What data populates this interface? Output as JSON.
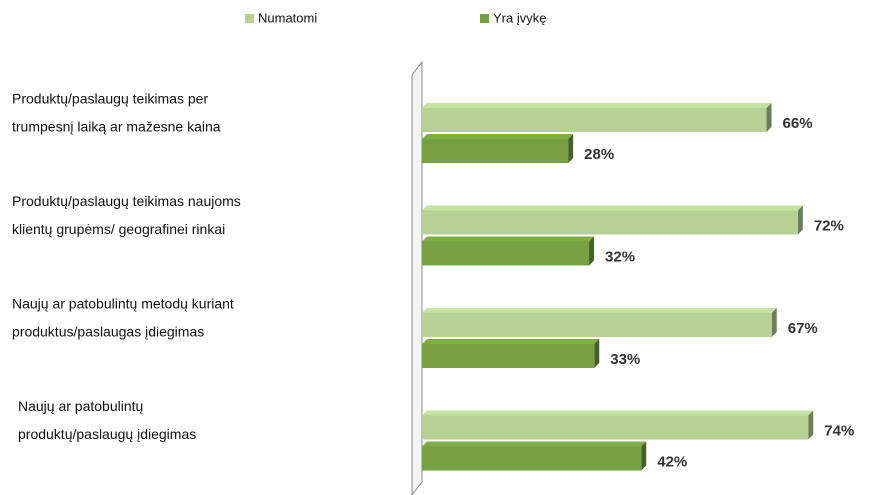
{
  "chart_data": {
    "type": "bar3d_horizontal",
    "categories": [
      [
        "Produktų/paslaugų teikimas per",
        "trumpesnį laiką ar mažesne kaina"
      ],
      [
        "Produktų/paslaugų teikimas naujoms",
        "klientų grupėms/ geografinei rinkai"
      ],
      [
        "Naujų ar patobulintų metodų kuriant",
        "produktus/paslaugas įdiegimas"
      ],
      [
        "Naujų ar patobulintų",
        "produktų/paslaugų įdiegimas"
      ]
    ],
    "series": [
      {
        "name": "Numatomi",
        "color": "#b7d195",
        "values": [
          66,
          72,
          67,
          74
        ],
        "value_labels": [
          "66%",
          "72%",
          "67%",
          "74%"
        ]
      },
      {
        "name": "Yra įvykę",
        "color": "#77a043",
        "values": [
          28,
          32,
          33,
          42
        ],
        "value_labels": [
          "28%",
          "32%",
          "33%",
          "42%"
        ]
      }
    ],
    "legend": "top"
  }
}
